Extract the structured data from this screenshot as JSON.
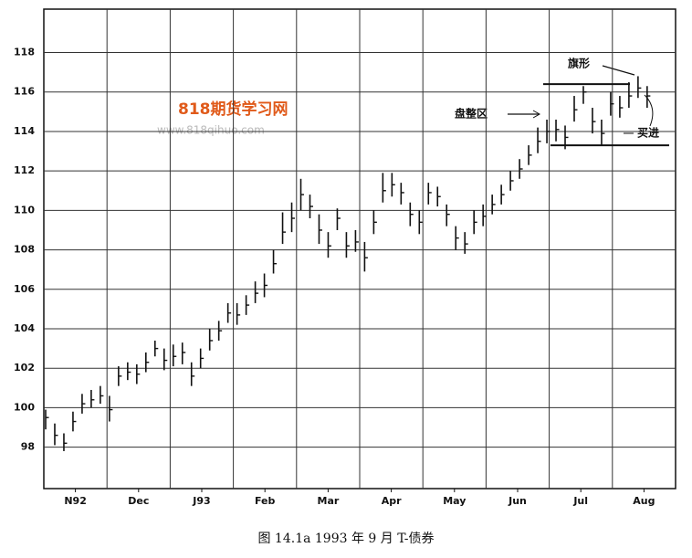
{
  "chart_data": {
    "type": "hlc",
    "caption": "图 14.1a   1993 年 9 月   T-债券",
    "watermark": "818期货学习网",
    "watermark_url": "www.818qihuo.com",
    "annotations": [
      "盘整区",
      "旗形",
      "买进"
    ],
    "categories": [
      "N92",
      "Dec",
      "J93",
      "Feb",
      "Mar",
      "Apr",
      "May",
      "Jun",
      "Jul",
      "Aug"
    ],
    "ylim": [
      95.9,
      120.2
    ],
    "yticks": [
      98,
      100,
      102,
      104,
      106,
      108,
      110,
      112,
      114,
      116,
      118
    ],
    "grid": true,
    "color": "#111111",
    "levels": [
      116.4,
      113.3
    ],
    "high": [
      99.9,
      99.2,
      98.7,
      99.8,
      100.7,
      100.9,
      101.1,
      100.6,
      102.1,
      102.3,
      102.2,
      102.8,
      103.4,
      103,
      103.2,
      103.3,
      102.3,
      103,
      104,
      104.4,
      105.3,
      105.3,
      105.7,
      106.4,
      106.8,
      108,
      109.9,
      110.4,
      111.6,
      110.8,
      109.8,
      108.9,
      110.1,
      108.9,
      109,
      108.4,
      110,
      111.9,
      111.9,
      111.4,
      110.4,
      110,
      111.4,
      111.2,
      110.3,
      109.2,
      108.9,
      110,
      110.3,
      110.8,
      111.3,
      112,
      112.6,
      113.3,
      114.2,
      114.6,
      114.6,
      114.3,
      115.8,
      116.3,
      115.2,
      114.6,
      116,
      115.8,
      116.5,
      116.8,
      116.3
    ],
    "low": [
      98.9,
      98.1,
      97.8,
      98.8,
      99.7,
      100,
      100.2,
      99.3,
      101.1,
      101.4,
      101.2,
      101.8,
      102.6,
      101.9,
      102.1,
      102.2,
      101.1,
      102,
      102.9,
      103.4,
      104.3,
      104.2,
      104.7,
      105.3,
      105.6,
      106.8,
      108.3,
      108.9,
      110,
      109.6,
      108.3,
      107.6,
      109,
      107.6,
      107.9,
      106.9,
      108.8,
      110.4,
      110.7,
      110.3,
      109.2,
      108.8,
      110.3,
      110.2,
      109.2,
      108,
      107.8,
      108.8,
      109.2,
      109.8,
      110.3,
      111,
      111.6,
      112.3,
      112.9,
      113.4,
      113.5,
      113.1,
      114.5,
      115.4,
      113.9,
      113.3,
      114.8,
      114.7,
      115.2,
      115.7,
      115.2
    ],
    "close": [
      99.5,
      98.6,
      98.2,
      99.3,
      100.2,
      100.4,
      100.6,
      99.9,
      101.6,
      101.8,
      101.7,
      102.3,
      103,
      102.4,
      102.6,
      102.8,
      101.6,
      102.5,
      103.4,
      103.9,
      104.8,
      104.7,
      105.2,
      105.8,
      106.2,
      107.3,
      108.9,
      109.6,
      110.8,
      110.2,
      109,
      108.2,
      109.6,
      108.2,
      108.4,
      107.6,
      109.4,
      111,
      111.3,
      110.9,
      109.8,
      109.4,
      110.9,
      110.7,
      109.8,
      108.6,
      108.3,
      109.4,
      109.7,
      110.3,
      110.8,
      111.5,
      112.1,
      112.8,
      113.5,
      114,
      114.1,
      113.7,
      115.1,
      116,
      114.5,
      113.9,
      115.4,
      115.2,
      115.8,
      116.2,
      115.8
    ]
  }
}
